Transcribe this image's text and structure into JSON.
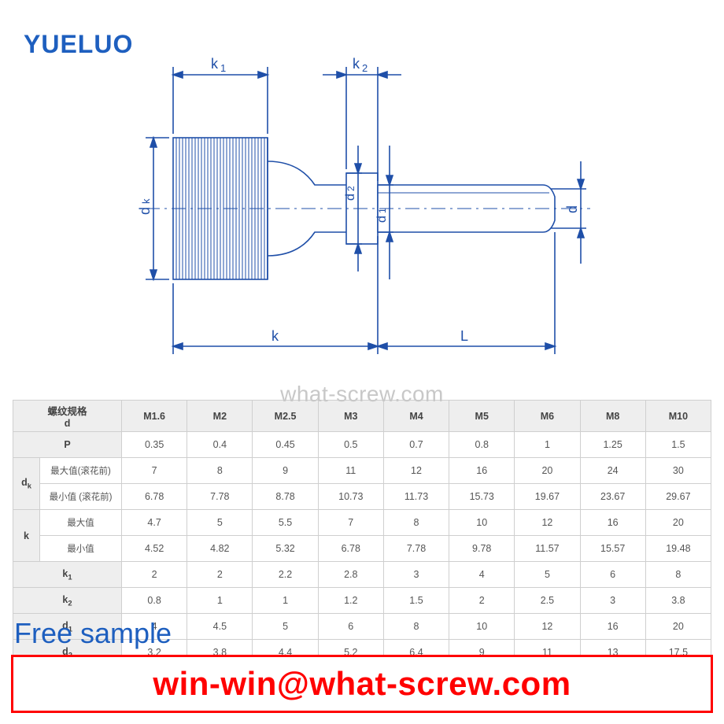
{
  "logo_text": "YUELUO",
  "watermark_center": "what-screw.com",
  "overlay_text": "Free sample",
  "footer_email": "win-win@what-screw.com",
  "diagram": {
    "stroke_color": "#1f4fa8",
    "labels": {
      "k1": "k1",
      "k2": "k2",
      "dk": "dk",
      "d2": "d2",
      "d1": "d1",
      "d": "d",
      "k": "k",
      "L": "L"
    },
    "label_fontsize": 18
  },
  "table": {
    "header_bg": "#eeeeee",
    "border_color": "#cfcfcf",
    "text_color": "#555555",
    "header_label_line1": "螺纹规格",
    "header_label_line2": "d",
    "columns": [
      "M1.6",
      "M2",
      "M2.5",
      "M3",
      "M4",
      "M5",
      "M6",
      "M8",
      "M10"
    ],
    "rows": [
      {
        "sym": "P",
        "sub": "",
        "vals": [
          "0.35",
          "0.4",
          "0.45",
          "0.5",
          "0.7",
          "0.8",
          "1",
          "1.25",
          "1.5"
        ]
      },
      {
        "sym": "dk",
        "sub": "最大值(滚花前)",
        "vals": [
          "7",
          "8",
          "9",
          "11",
          "12",
          "16",
          "20",
          "24",
          "30"
        ],
        "group_first": true,
        "group_span": 2
      },
      {
        "sym": "",
        "sub": "最小值 (滚花前)",
        "vals": [
          "6.78",
          "7.78",
          "8.78",
          "10.73",
          "11.73",
          "15.73",
          "19.67",
          "23.67",
          "29.67"
        ]
      },
      {
        "sym": "k",
        "sub": "最大值",
        "vals": [
          "4.7",
          "5",
          "5.5",
          "7",
          "8",
          "10",
          "12",
          "16",
          "20"
        ],
        "group_first": true,
        "group_span": 2
      },
      {
        "sym": "",
        "sub": "最小值",
        "vals": [
          "4.52",
          "4.82",
          "5.32",
          "6.78",
          "7.78",
          "9.78",
          "11.57",
          "15.57",
          "19.48"
        ]
      },
      {
        "sym": "k1",
        "sub": "",
        "vals": [
          "2",
          "2",
          "2.2",
          "2.8",
          "3",
          "4",
          "5",
          "6",
          "8"
        ]
      },
      {
        "sym": "k2",
        "sub": "",
        "vals": [
          "0.8",
          "1",
          "1",
          "1.2",
          "1.5",
          "2",
          "2.5",
          "3",
          "3.8"
        ]
      },
      {
        "sym": "d1",
        "sub": "",
        "vals": [
          "4",
          "4.5",
          "5",
          "6",
          "8",
          "10",
          "12",
          "16",
          "20"
        ]
      },
      {
        "sym": "d2",
        "sub": "",
        "vals": [
          "3.2",
          "3.8",
          "4.4",
          "5.2",
          "6.4",
          "9",
          "11",
          "13",
          "17.5"
        ]
      }
    ]
  }
}
